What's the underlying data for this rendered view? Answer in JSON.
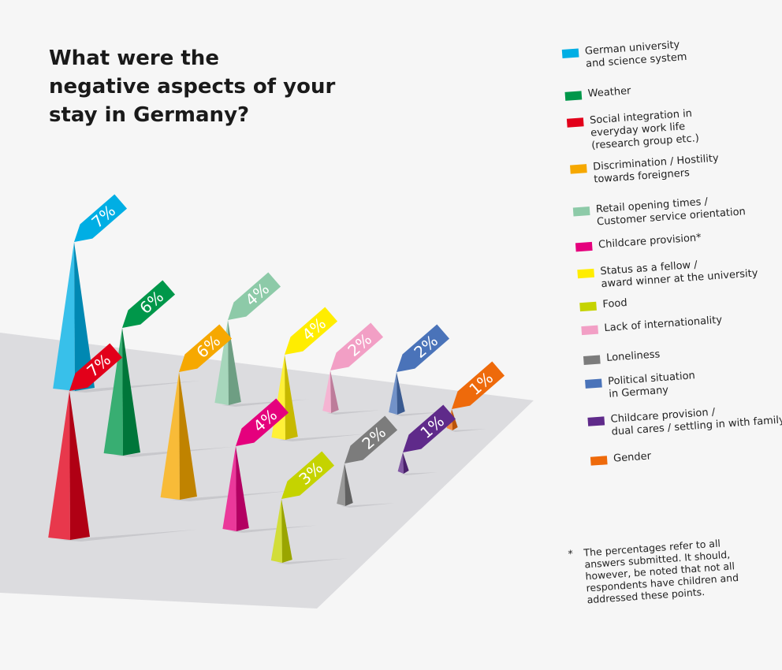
{
  "title_lines": [
    "What were the",
    "negative aspects of your",
    "stay in Germany?"
  ],
  "chart_data": {
    "type": "bar",
    "title": "What were the negative aspects of your stay in Germany?",
    "unit": "%",
    "categories": [
      "German university and science system",
      "Weather",
      "Social integration in everyday work life (research group etc.)",
      "Discrimination / Hostility towards foreigners",
      "Retail opening times / Customer service orientation",
      "Childcare provision*",
      "Status as a fellow / award winner at the university",
      "Food",
      "Lack of internationality",
      "Loneliness",
      "Political situation in Germany",
      "Childcare provision / dual cares / settling in with family",
      "Gender"
    ],
    "values": [
      7,
      6,
      7,
      6,
      4,
      4,
      4,
      3,
      2,
      2,
      2,
      1,
      1
    ],
    "value_labels": [
      "7%",
      "6%",
      "7%",
      "6%",
      "4%",
      "4%",
      "4%",
      "3%",
      "2%",
      "2%",
      "2%",
      "1%",
      "1%"
    ],
    "colors": [
      "#00aee4",
      "#00974a",
      "#e2001a",
      "#f6a800",
      "#8dcaa8",
      "#e5007d",
      "#ffed00",
      "#c5d300",
      "#f29fc5",
      "#7c7c7c",
      "#4a73b9",
      "#5f2a8a",
      "#ee6a0b"
    ]
  },
  "legend": [
    {
      "lines": [
        "German university",
        "and science system"
      ],
      "color": "#00aee4"
    },
    {
      "lines": [
        "Weather"
      ],
      "color": "#00974a"
    },
    {
      "lines": [
        "Social integration in",
        "everyday work life",
        "(research group etc.)"
      ],
      "color": "#e2001a"
    },
    {
      "lines": [
        "Discrimination / Hostility",
        "towards foreigners"
      ],
      "color": "#f6a800"
    },
    {
      "lines": [
        "Retail opening times /",
        "Customer service orientation"
      ],
      "color": "#8dcaa8"
    },
    {
      "lines": [
        "Childcare provision*"
      ],
      "color": "#e5007d"
    },
    {
      "lines": [
        "Status as a fellow /",
        "award winner at the university"
      ],
      "color": "#ffed00"
    },
    {
      "lines": [
        "Food"
      ],
      "color": "#c5d300"
    },
    {
      "lines": [
        "Lack of internationality"
      ],
      "color": "#f29fc5"
    },
    {
      "lines": [
        "Loneliness"
      ],
      "color": "#7c7c7c"
    },
    {
      "lines": [
        "Political situation",
        "in Germany"
      ],
      "color": "#4a73b9"
    },
    {
      "lines": [
        "Childcare provision /",
        "dual cares / settling in with family"
      ],
      "color": "#5f2a8a"
    },
    {
      "lines": [
        "Gender"
      ],
      "color": "#ee6a0b"
    }
  ],
  "footnote": {
    "marker": "*",
    "lines": [
      "The percentages refer to all",
      "answers submitted. It should,",
      "however, be noted that not all",
      "respondents have children and",
      "addressed these points."
    ]
  }
}
